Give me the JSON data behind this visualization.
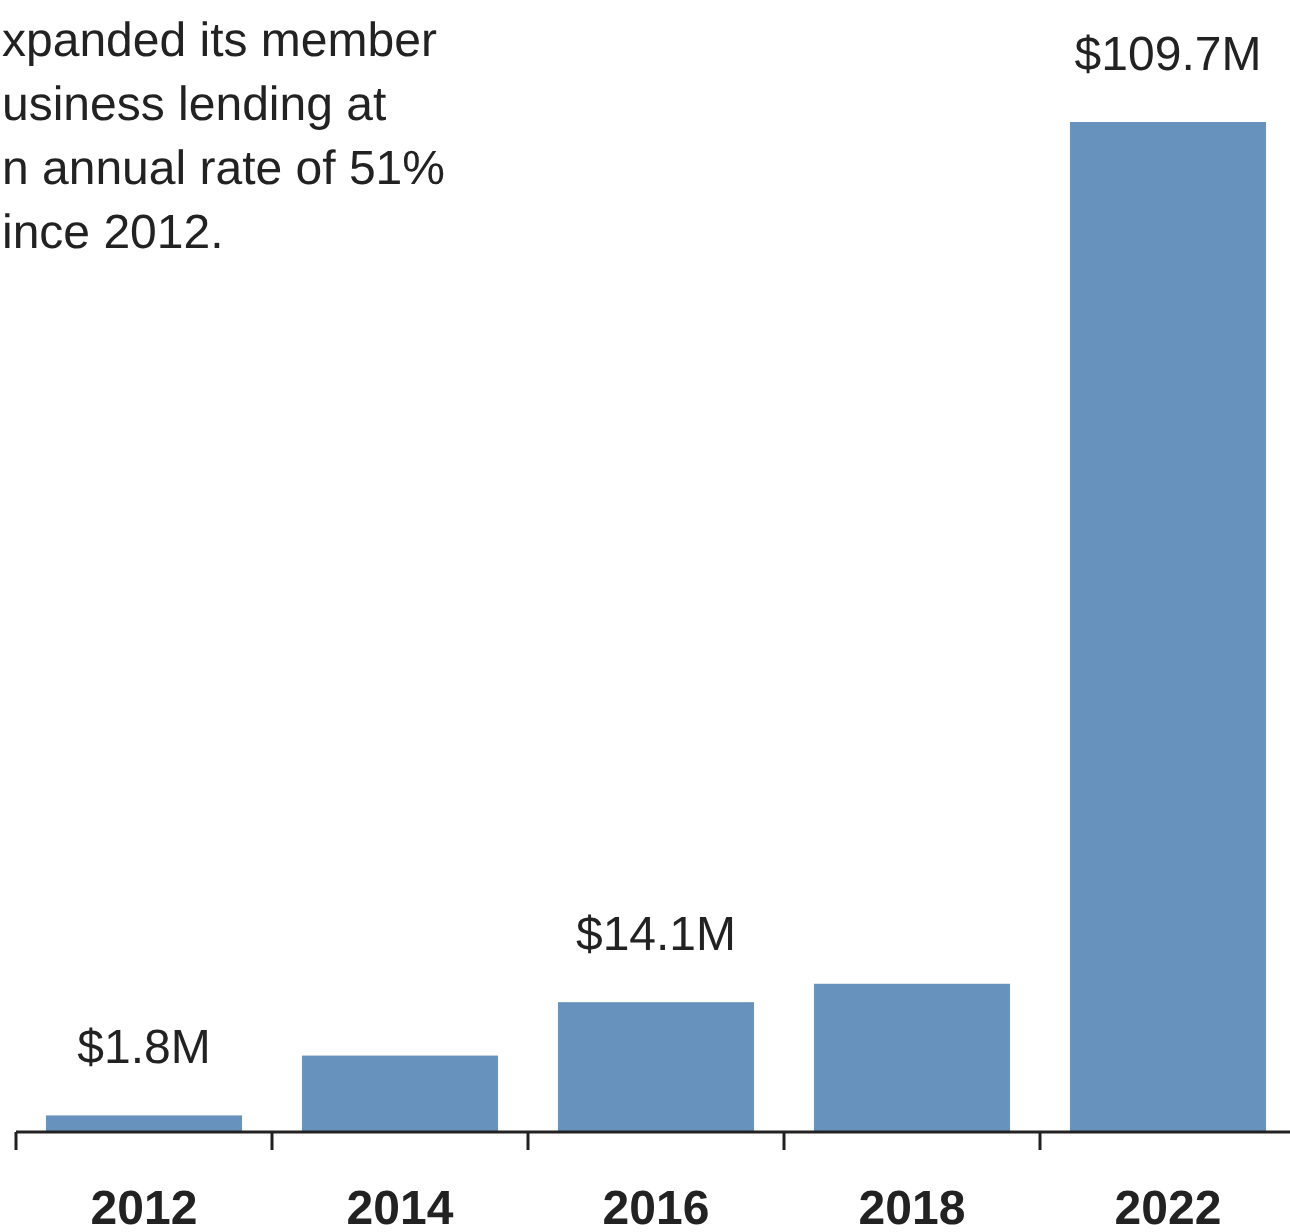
{
  "chart_data": {
    "type": "bar",
    "categories": [
      "2012",
      "2014",
      "2016",
      "2018",
      "2022"
    ],
    "values": [
      1.8,
      8.3,
      14.1,
      16.1,
      109.7
    ],
    "value_labels": [
      "$1.8M",
      null,
      "$14.1M",
      null,
      "$109.7M"
    ],
    "color": "#6792bd",
    "annotations": [
      "xpanded its member",
      "usiness lending at",
      "n annual rate of 51%",
      "ince 2012."
    ]
  }
}
